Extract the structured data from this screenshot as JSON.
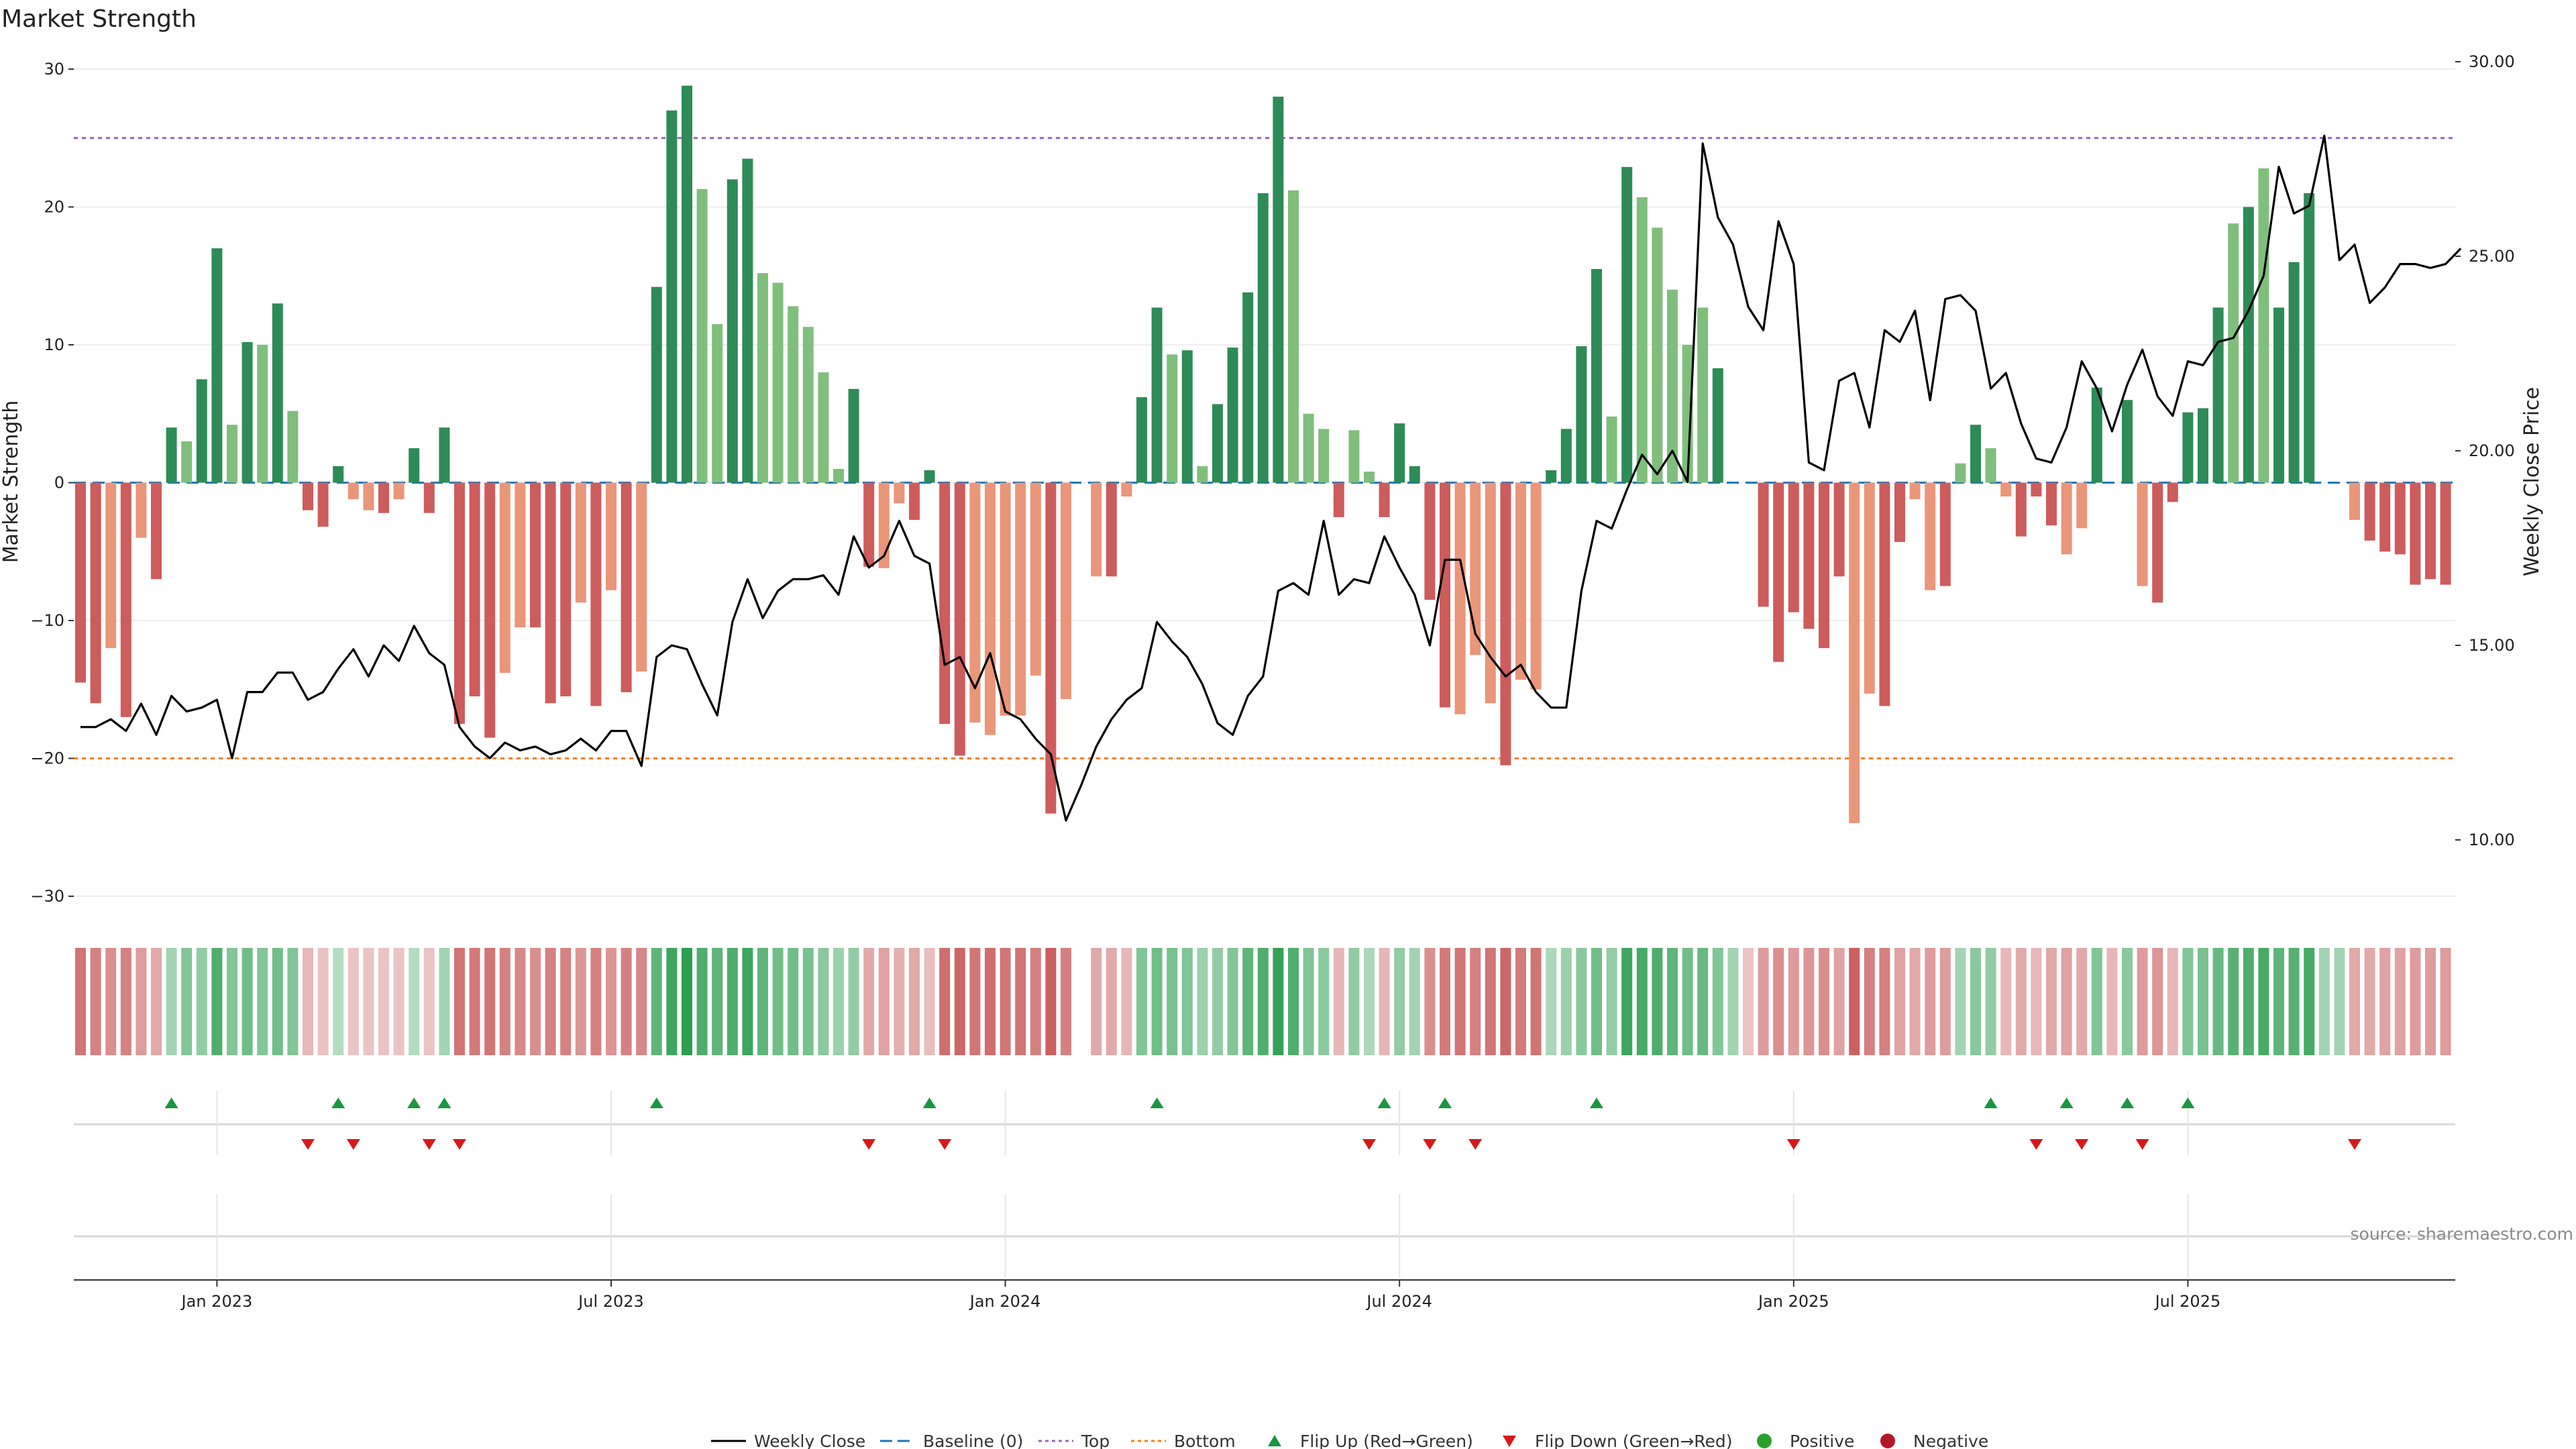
{
  "chart_data": {
    "type": "bar",
    "title": "Market Strength",
    "ylabel": "Market Strength",
    "y2label": "Weekly Close Price",
    "ylim": [
      -30,
      30
    ],
    "y2lim": [
      8.5,
      30.0
    ],
    "yticks": [
      "30",
      "20",
      "10",
      "0",
      "−10",
      "−20",
      "−30"
    ],
    "ytick_values": [
      30,
      20,
      10,
      0,
      -10,
      -20,
      -30
    ],
    "y2ticks": [
      "30.00",
      "25.00",
      "20.00",
      "15.00",
      "10.00"
    ],
    "y2tick_values": [
      30,
      25,
      20,
      15,
      10
    ],
    "reference_lines": {
      "top": 25,
      "bottom": -20,
      "baseline": 0
    },
    "x_tick_labels": [
      "Jan 2023",
      "Jul 2023",
      "Jan 2024",
      "Jul 2024",
      "Jan 2025",
      "Jul 2025"
    ],
    "x_tick_weeks": [
      9,
      35,
      61,
      87,
      113,
      139
    ],
    "strength": [
      -14.5,
      -16,
      -12,
      -17,
      -4,
      -7,
      4,
      3,
      7.5,
      17,
      4.2,
      10.2,
      10,
      13,
      5.2,
      -2,
      -3.2,
      1.2,
      -1.2,
      -2,
      -2.2,
      -1.2,
      2.5,
      -2.2,
      4,
      -17.5,
      -15.5,
      -18.5,
      -13.8,
      -10.5,
      -10.5,
      -16,
      -15.5,
      -8.7,
      -16.2,
      -7.8,
      -15.2,
      -13.7,
      14.2,
      27,
      28.8,
      21.3,
      11.5,
      22,
      23.5,
      15.2,
      14.5,
      12.8,
      11.3,
      8,
      1,
      6.8,
      -6.1,
      -6.2,
      -1.5,
      -2.7,
      0.9,
      -17.5,
      -19.8,
      -17.4,
      -18.3,
      -16.9,
      -16.9,
      -14,
      -24,
      -15.7,
      0,
      -6.8,
      -6.8,
      -1,
      6.2,
      12.7,
      9.3,
      9.6,
      1.2,
      5.7,
      9.8,
      13.8,
      21,
      28,
      21.2,
      5,
      3.9,
      -2.5,
      3.8,
      0.8,
      -2.5,
      4.3,
      1.2,
      -8.5,
      -16.3,
      -16.8,
      -12.5,
      -16,
      -20.5,
      -14.3,
      -15,
      0.9,
      3.9,
      9.9,
      15.5,
      4.8,
      22.9,
      20.7,
      18.5,
      14,
      10,
      12.7,
      8.3,
      0,
      0,
      -9,
      -13,
      -9.4,
      -10.6,
      -12,
      -6.8,
      -24.7,
      -15.3,
      -16.2,
      -4.3,
      -1.2,
      -7.8,
      -7.5,
      1.4,
      4.2,
      2.5,
      -1,
      -3.9,
      -1,
      -3.1,
      -5.2,
      -3.3,
      6.9,
      0,
      6,
      -7.5,
      -8.7,
      -1.4,
      5.1,
      5.4,
      12.7,
      18.8,
      20,
      22.8,
      12.7,
      16,
      21,
      0,
      0,
      -2.7,
      -4.2,
      -5,
      -5.2,
      -7.4,
      -7,
      -7.4
    ],
    "bar_shade": [
      0,
      0,
      1,
      0,
      1,
      0,
      0,
      1,
      0,
      0,
      1,
      0,
      1,
      0,
      1,
      0,
      0,
      0,
      1,
      1,
      0,
      1,
      0,
      0,
      0,
      0,
      0,
      0,
      1,
      1,
      0,
      0,
      0,
      1,
      0,
      1,
      0,
      1,
      0,
      0,
      0,
      1,
      1,
      0,
      0,
      1,
      1,
      1,
      1,
      1,
      1,
      0,
      0,
      1,
      1,
      0,
      0,
      0,
      0,
      1,
      1,
      1,
      1,
      1,
      0,
      1,
      0,
      1,
      0,
      1,
      0,
      0,
      1,
      0,
      1,
      0,
      0,
      0,
      0,
      0,
      1,
      1,
      1,
      0,
      1,
      1,
      0,
      0,
      0,
      0,
      0,
      1,
      1,
      1,
      0,
      1,
      1,
      0,
      0,
      0,
      0,
      1,
      0,
      1,
      1,
      1,
      1,
      1,
      0,
      1,
      0,
      0,
      0,
      0,
      0,
      0,
      0,
      1,
      1,
      0,
      0,
      1,
      1,
      0,
      1,
      0,
      1,
      1,
      0,
      0,
      0,
      1,
      1,
      0,
      0,
      0,
      1,
      0,
      0,
      0,
      0,
      0,
      1,
      0,
      1,
      0,
      0,
      0,
      1,
      0,
      1,
      0,
      0,
      0,
      0,
      0,
      0
    ],
    "weekly_close": [
      12.9,
      12.9,
      13.1,
      12.8,
      13.5,
      12.7,
      13.7,
      13.3,
      13.4,
      13.6,
      12.1,
      13.8,
      13.8,
      14.3,
      14.3,
      13.6,
      13.8,
      14.4,
      14.9,
      14.2,
      15,
      14.6,
      15.5,
      14.8,
      14.5,
      12.9,
      12.4,
      12.1,
      12.5,
      12.3,
      12.4,
      12.2,
      12.3,
      12.6,
      12.3,
      12.8,
      12.8,
      11.9,
      14.7,
      15,
      14.9,
      14,
      13.2,
      15.6,
      16.7,
      15.7,
      16.4,
      16.7,
      16.7,
      16.8,
      16.3,
      17.8,
      17,
      17.3,
      18.2,
      17.3,
      17.1,
      14.5,
      14.7,
      13.9,
      14.8,
      13.3,
      13.1,
      12.6,
      12.2,
      10.5,
      11.4,
      12.4,
      13.1,
      13.6,
      13.9,
      15.6,
      15.1,
      14.7,
      14,
      13,
      12.7,
      13.7,
      14.2,
      16.4,
      16.6,
      16.3,
      18.2,
      16.3,
      16.7,
      16.6,
      17.8,
      17,
      16.3,
      15,
      17.2,
      17.2,
      15.3,
      14.7,
      14.2,
      14.5,
      13.8,
      13.4,
      13.4,
      16.4,
      18.2,
      18,
      19,
      19.9,
      19.4,
      20,
      19.2,
      27.9,
      26,
      25.3,
      23.7,
      23.1,
      25.9,
      24.8,
      19.7,
      19.5,
      21.8,
      22,
      20.6,
      23.1,
      22.8,
      23.6,
      21.3,
      23.9,
      24,
      23.6,
      21.6,
      22,
      20.7,
      19.8,
      19.7,
      20.6,
      22.3,
      21.6,
      20.5,
      21.7,
      22.6,
      21.4,
      20.9,
      22.3,
      22.2,
      22.8,
      22.9,
      23.6,
      24.5,
      27.3,
      26.1,
      26.3,
      28.1,
      24.9,
      25.3,
      23.8,
      24.2,
      24.8,
      24.8,
      24.7,
      24.8,
      25.2
    ],
    "heatmap": [
      0.8,
      0.7,
      0.6,
      0.7,
      0.5,
      0.4,
      -0.3,
      -0.5,
      -0.4,
      -0.8,
      -0.5,
      -0.6,
      -0.5,
      -0.6,
      -0.5,
      0.3,
      0.2,
      -0.2,
      0.2,
      0.2,
      0.2,
      0.2,
      -0.2,
      0.2,
      -0.3,
      0.8,
      0.75,
      0.8,
      0.7,
      0.65,
      0.6,
      0.7,
      0.7,
      0.55,
      0.7,
      0.55,
      0.7,
      0.65,
      -0.7,
      -0.9,
      -1,
      -0.8,
      -0.7,
      -0.8,
      -0.9,
      -0.7,
      -0.6,
      -0.6,
      -0.55,
      -0.45,
      -0.35,
      -0.4,
      0.4,
      0.45,
      0.35,
      0.4,
      0.25,
      0.85,
      0.9,
      0.8,
      0.85,
      0.8,
      0.8,
      0.7,
      0.95,
      0.7,
      null,
      0.4,
      0.4,
      0.3,
      -0.5,
      -0.6,
      -0.55,
      -0.5,
      -0.35,
      -0.4,
      -0.5,
      -0.7,
      -0.8,
      -0.95,
      -0.8,
      -0.5,
      -0.45,
      0.3,
      -0.4,
      -0.25,
      0.3,
      -0.4,
      -0.3,
      0.6,
      0.75,
      0.8,
      0.7,
      0.8,
      0.9,
      0.75,
      0.8,
      -0.25,
      -0.35,
      -0.45,
      -0.6,
      -0.4,
      -0.9,
      -0.85,
      -0.8,
      -0.7,
      -0.6,
      -0.65,
      -0.5,
      -0.3,
      0.2,
      0.5,
      0.6,
      0.5,
      0.55,
      0.6,
      0.45,
      0.95,
      0.7,
      0.7,
      0.45,
      0.4,
      0.5,
      0.5,
      -0.3,
      -0.45,
      -0.4,
      0.3,
      0.4,
      0.3,
      0.4,
      0.45,
      0.4,
      -0.5,
      0.3,
      -0.45,
      0.5,
      0.55,
      0.3,
      -0.5,
      -0.55,
      -0.65,
      -0.75,
      -0.8,
      -0.85,
      -0.7,
      -0.75,
      -0.85,
      -0.3,
      -0.3,
      0.4,
      0.4,
      0.45,
      0.45,
      0.5,
      0.5,
      0.5
    ],
    "flip_up_weeks": [
      6,
      17,
      22,
      24,
      38,
      56,
      71,
      86,
      90,
      100,
      126,
      131,
      135,
      139
    ],
    "flip_down_weeks": [
      15,
      18,
      23,
      25,
      52,
      57,
      85,
      89,
      92,
      113,
      129,
      132,
      136,
      150
    ],
    "legend": [
      {
        "key": "weekly_close",
        "label": "Weekly Close"
      },
      {
        "key": "baseline",
        "label": "Baseline (0)"
      },
      {
        "key": "top",
        "label": "Top"
      },
      {
        "key": "bottom",
        "label": "Bottom"
      },
      {
        "key": "flip_up",
        "label": "Flip Up (Red→Green)"
      },
      {
        "key": "flip_down",
        "label": "Flip Down (Green→Red)"
      },
      {
        "key": "positive",
        "label": "Positive"
      },
      {
        "key": "negative",
        "label": "Negative"
      }
    ],
    "source": "source: sharemaestro.com",
    "colors": {
      "pos_dark": "#2e8b57",
      "pos_light": "#7fbf7b",
      "neg_dark": "#cd5c5c",
      "neg_light": "#e9967a",
      "close_line": "#000000",
      "baseline": "#1f77b4",
      "top": "#9467bd",
      "bottom": "#ff7f0e",
      "flip_up": "#1a9641",
      "flip_down": "#d7191c",
      "positive_dot": "#2ca02c",
      "negative_dot": "#b2182b"
    }
  }
}
